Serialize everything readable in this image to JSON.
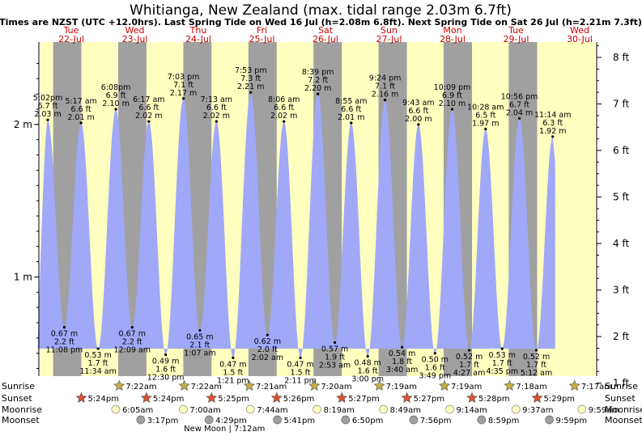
{
  "title": "Whitianga, New Zealand (max. tidal range 2.03m 6.7ft)",
  "subtitle": "Times are NZST (UTC +12.0hrs). Last Spring Tide on Wed 16 Jul (h=2.08m 6.8ft). Next Spring Tide on Sat 26 Jul (h=2.21m 7.3ft)",
  "colors": {
    "day": "#ffffc0",
    "night": "#a0a0a0",
    "tide": "#a0a8f8",
    "day_label": "#cc0000",
    "sun_star": "#c8b040",
    "sunset_star": "#e05030",
    "moonrise": "#ffffc0",
    "moonset": "#a0a0a0"
  },
  "chart_data": {
    "type": "area",
    "x_range": [
      "2025-07-22 02:20",
      "2025-07-30 14:50"
    ],
    "days": [
      {
        "name": "Tue",
        "date": "22-Jul"
      },
      {
        "name": "Wed",
        "date": "23-Jul"
      },
      {
        "name": "Thu",
        "date": "24-Jul"
      },
      {
        "name": "Fri",
        "date": "25-Jul"
      },
      {
        "name": "Sat",
        "date": "26-Jul"
      },
      {
        "name": "Sun",
        "date": "27-Jul"
      },
      {
        "name": "Mon",
        "date": "28-Jul"
      },
      {
        "name": "Tue",
        "date": "29-Jul"
      },
      {
        "name": "Wed",
        "date": "30-Jul"
      }
    ],
    "extremes": [
      {
        "t": "2025-07-22 05:02",
        "time": "5:02pm",
        "m": 2.03,
        "ft": "6.7 ft",
        "mlabel": "2.03 m",
        "type": "high"
      },
      {
        "t": "2025-07-22 11:08",
        "time": "11:08 pm",
        "m": 0.67,
        "ft": "2.2 ft",
        "mlabel": "0.67 m",
        "type": "low"
      },
      {
        "t": "2025-07-22 17:17",
        "time": "5:17 am",
        "m": 2.01,
        "ft": "6.6 ft",
        "mlabel": "2.01 m",
        "type": "high"
      },
      {
        "t": "2025-07-22 23:34",
        "time": "11:34 am",
        "m": 0.53,
        "ft": "1.7 ft",
        "mlabel": "0.53 m",
        "type": "low"
      },
      {
        "t": "2025-07-23 06:08",
        "time": "6:08pm",
        "m": 2.1,
        "ft": "6.9 ft",
        "mlabel": "2.10 m",
        "type": "high"
      },
      {
        "t": "2025-07-23 12:09",
        "time": "12:09 am",
        "m": 0.67,
        "ft": "2.2 ft",
        "mlabel": "0.67 m",
        "type": "low"
      },
      {
        "t": "2025-07-23 18:17",
        "time": "6:17 am",
        "m": 2.02,
        "ft": "6.6 ft",
        "mlabel": "2.02 m",
        "type": "high"
      },
      {
        "t": "2025-07-24 00:30",
        "time": "12:30 pm",
        "m": 0.49,
        "ft": "1.6 ft",
        "mlabel": "0.49 m",
        "type": "low"
      },
      {
        "t": "2025-07-24 07:03",
        "time": "7:03 pm",
        "m": 2.17,
        "ft": "7.1 ft",
        "mlabel": "2.17 m",
        "type": "high"
      },
      {
        "t": "2025-07-24 13:07",
        "time": "1:07 am",
        "m": 0.65,
        "ft": "2.1 ft",
        "mlabel": "0.65 m",
        "type": "low"
      },
      {
        "t": "2025-07-24 19:13",
        "time": "7:13 am",
        "m": 2.02,
        "ft": "6.6 ft",
        "mlabel": "2.02 m",
        "type": "high"
      },
      {
        "t": "2025-07-25 01:21",
        "time": "1:21 pm",
        "m": 0.47,
        "ft": "1.5 ft",
        "mlabel": "0.47 m",
        "type": "low"
      },
      {
        "t": "2025-07-25 07:53",
        "time": "7:53 pm",
        "m": 2.21,
        "ft": "7.3 ft",
        "mlabel": "2.21 m",
        "type": "high"
      },
      {
        "t": "2025-07-25 14:02",
        "time": "2:02 am",
        "m": 0.62,
        "ft": "2.0 ft",
        "mlabel": "0.62 m",
        "type": "low"
      },
      {
        "t": "2025-07-25 20:06",
        "time": "8:06 am",
        "m": 2.02,
        "ft": "6.6 ft",
        "mlabel": "2.02 m",
        "type": "high"
      },
      {
        "t": "2025-07-26 02:11",
        "time": "2:11 pm",
        "m": 0.47,
        "ft": "1.5 ft",
        "mlabel": "0.47 m",
        "type": "low"
      },
      {
        "t": "2025-07-26 08:39",
        "time": "8:39 pm",
        "m": 2.2,
        "ft": "7.2 ft",
        "mlabel": "2.20 m",
        "type": "high"
      },
      {
        "t": "2025-07-26 14:53",
        "time": "2:53 am",
        "m": 0.57,
        "ft": "1.9 ft",
        "mlabel": "0.57 m",
        "type": "low"
      },
      {
        "t": "2025-07-26 20:55",
        "time": "8:55 am",
        "m": 2.01,
        "ft": "6.6 ft",
        "mlabel": "2.01 m",
        "type": "high"
      },
      {
        "t": "2025-07-27 03:00",
        "time": "3:00 pm",
        "m": 0.48,
        "ft": "1.6 ft",
        "mlabel": "0.48 m",
        "type": "low"
      },
      {
        "t": "2025-07-27 09:24",
        "time": "9:24 pm",
        "m": 2.16,
        "ft": "7.1 ft",
        "mlabel": "2.16 m",
        "type": "high"
      },
      {
        "t": "2025-07-27 15:40",
        "time": "3:40 am",
        "m": 0.54,
        "ft": "1.8 ft",
        "mlabel": "0.54 m",
        "type": "low"
      },
      {
        "t": "2025-07-27 21:43",
        "time": "9:43 am",
        "m": 2.0,
        "ft": "6.6 ft",
        "mlabel": "2.00 m",
        "type": "high"
      },
      {
        "t": "2025-07-28 03:49",
        "time": "3:49 pm",
        "m": 0.5,
        "ft": "1.6 ft",
        "mlabel": "0.50 m",
        "type": "low"
      },
      {
        "t": "2025-07-28 10:09",
        "time": "10:09 pm",
        "m": 2.1,
        "ft": "6.9 ft",
        "mlabel": "2.10 m",
        "type": "high"
      },
      {
        "t": "2025-07-28 16:27",
        "time": "4:27 am",
        "m": 0.52,
        "ft": "1.7 ft",
        "mlabel": "0.52 m",
        "type": "low"
      },
      {
        "t": "2025-07-28 22:28",
        "time": "10:28 am",
        "m": 1.97,
        "ft": "6.5 ft",
        "mlabel": "1.97 m",
        "type": "high"
      },
      {
        "t": "2025-07-29 04:35",
        "time": "4:35 pm",
        "m": 0.53,
        "ft": "1.7 ft",
        "mlabel": "0.53 m",
        "type": "low"
      },
      {
        "t": "2025-07-29 10:56",
        "time": "10:56 pm",
        "m": 2.04,
        "ft": "6.7 ft",
        "mlabel": "2.04 m",
        "type": "high"
      },
      {
        "t": "2025-07-29 17:12",
        "time": "5:12 am",
        "m": 0.52,
        "ft": "1.7 ft",
        "mlabel": "0.52 m",
        "type": "low"
      },
      {
        "t": "2025-07-29 23:14",
        "time": "11:14 am",
        "m": 1.92,
        "ft": "6.3 ft",
        "mlabel": "1.92 m",
        "type": "high"
      }
    ],
    "y_left": {
      "unit": "m",
      "range": [
        0.35,
        2.54
      ],
      "ticks": [
        {
          "v": 2,
          "label": "2 m"
        },
        {
          "v": 1,
          "label": "1 m"
        }
      ]
    },
    "y_right": {
      "unit": "ft",
      "range": [
        1.15,
        8.33
      ],
      "ticks": [
        "1 ft",
        "2 ft",
        "3 ft",
        "4 ft",
        "5 ft",
        "6 ft",
        "7 ft",
        "8 ft"
      ]
    },
    "night_bands": [
      [
        "2025-07-22 07:00",
        "2025-07-22 17:24"
      ],
      [
        "2025-07-23 07:00",
        "2025-07-23 17:24"
      ],
      [
        "2025-07-24 07:00",
        "2025-07-24 17:25"
      ],
      [
        "2025-07-25 07:00",
        "2025-07-25 17:26"
      ],
      [
        "2025-07-26 07:00",
        "2025-07-26 17:27"
      ],
      [
        "2025-07-27 07:00",
        "2025-07-27 17:27"
      ],
      [
        "2025-07-28 07:00",
        "2025-07-28 17:28"
      ],
      [
        "2025-07-29 07:00",
        "2025-07-29 17:29"
      ]
    ],
    "sunrise": [
      {
        "t": "2025-07-23 07:22",
        "label": "7:22am"
      },
      {
        "t": "2025-07-24 07:22",
        "label": "7:22am"
      },
      {
        "t": "2025-07-25 07:21",
        "label": "7:21am"
      },
      {
        "t": "2025-07-26 07:20",
        "label": "7:20am"
      },
      {
        "t": "2025-07-27 07:19",
        "label": "7:19am"
      },
      {
        "t": "2025-07-28 07:19",
        "label": "7:19am"
      },
      {
        "t": "2025-07-29 07:18",
        "label": "7:18am"
      },
      {
        "t": "2025-07-30 07:17",
        "label": "7:17am"
      }
    ],
    "sunset": [
      {
        "t": "2025-07-22 17:24",
        "label": "5:24pm"
      },
      {
        "t": "2025-07-23 17:24",
        "label": "5:24pm"
      },
      {
        "t": "2025-07-24 17:25",
        "label": "5:25pm"
      },
      {
        "t": "2025-07-25 17:26",
        "label": "5:26pm"
      },
      {
        "t": "2025-07-26 17:27",
        "label": "5:27pm"
      },
      {
        "t": "2025-07-27 17:27",
        "label": "5:27pm"
      },
      {
        "t": "2025-07-28 17:28",
        "label": "5:28pm"
      },
      {
        "t": "2025-07-29 17:29",
        "label": "5:29pm"
      }
    ],
    "moonrise": [
      {
        "t": "2025-07-23 06:05",
        "label": "6:05am"
      },
      {
        "t": "2025-07-24 07:00",
        "label": "7:00am"
      },
      {
        "t": "2025-07-25 07:44",
        "label": "7:44am"
      },
      {
        "t": "2025-07-26 08:19",
        "label": "8:19am"
      },
      {
        "t": "2025-07-27 08:49",
        "label": "8:49am"
      },
      {
        "t": "2025-07-28 09:14",
        "label": "9:14am"
      },
      {
        "t": "2025-07-29 09:37",
        "label": "9:37am"
      },
      {
        "t": "2025-07-30 09:59",
        "label": "9:59am"
      }
    ],
    "moonset": [
      {
        "t": "2025-07-23 15:17",
        "label": "3:17pm"
      },
      {
        "t": "2025-07-24 16:29",
        "label": "4:29pm"
      },
      {
        "t": "2025-07-25 17:41",
        "label": "5:41pm"
      },
      {
        "t": "2025-07-26 18:50",
        "label": "6:50pm"
      },
      {
        "t": "2025-07-27 19:56",
        "label": "7:56pm"
      },
      {
        "t": "2025-07-28 20:59",
        "label": "8:59pm"
      },
      {
        "t": "2025-07-29 21:59",
        "label": "9:59pm"
      }
    ],
    "row_labels": [
      "Sunrise",
      "Sunset",
      "Moonrise",
      "Moonset"
    ],
    "moon_phase": {
      "t": "2025-07-24 19:12",
      "label": "New Moon | 7:12am"
    }
  }
}
